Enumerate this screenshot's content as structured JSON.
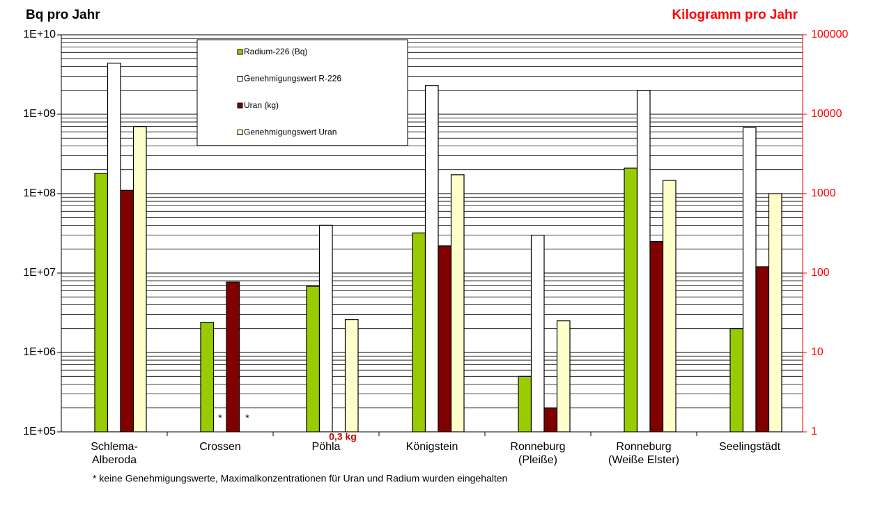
{
  "chart_data": {
    "type": "bar",
    "y_title": "Bq pro Jahr",
    "y2_title": "Kilogramm pro Jahr",
    "categories": [
      "Schlema-\nAlberoda",
      "Crossen",
      "Pöhla",
      "Königstein",
      "Ronneburg\n(Pleiße)",
      "Ronneburg\n(Weiße Elster)",
      "Seelingstädt"
    ],
    "series": [
      {
        "name": "Radium-226 (Bq)",
        "color": "#99cc00",
        "values": [
          180000000,
          2400000,
          6800000,
          32000000,
          500000,
          210000000,
          2000000
        ]
      },
      {
        "name": "Genehmigungswert R-226",
        "color": "#ffffff",
        "values": [
          4400000000,
          null,
          40000000,
          2300000000,
          30000000,
          2000000000,
          680000000
        ]
      },
      {
        "name": "Uran (kg)",
        "color": "#800000",
        "axis": "y2",
        "values": [
          1100,
          77,
          0.3,
          220,
          2,
          250,
          120
        ]
      },
      {
        "name": "Genehmigungswert Uran",
        "color": "#ffffcc",
        "axis": "y2",
        "values": [
          7000,
          null,
          26,
          1730,
          25,
          1470,
          1000
        ]
      }
    ],
    "log_scale": true,
    "grid": "major and minor",
    "ylim": [
      100000,
      10000000000
    ],
    "yticks": [
      {
        "value": 100000,
        "label": "1E+05"
      },
      {
        "value": 1000000,
        "label": "1E+06"
      },
      {
        "value": 10000000,
        "label": "1E+07"
      },
      {
        "value": 100000000,
        "label": "1E+08"
      },
      {
        "value": 1000000000,
        "label": "1E+09"
      },
      {
        "value": 10000000000,
        "label": "1E+10"
      }
    ],
    "y2lim": [
      1,
      100000
    ],
    "y2ticks": [
      1,
      10,
      100,
      1000,
      10000,
      100000
    ],
    "y2_color": "#ff0000",
    "annotations": [
      "*",
      "*",
      "0,3 kg"
    ],
    "footnote": "* keine Genehmigungswerte, Maximalkonzentrationen für Uran und Radium wurden eingehalten"
  }
}
